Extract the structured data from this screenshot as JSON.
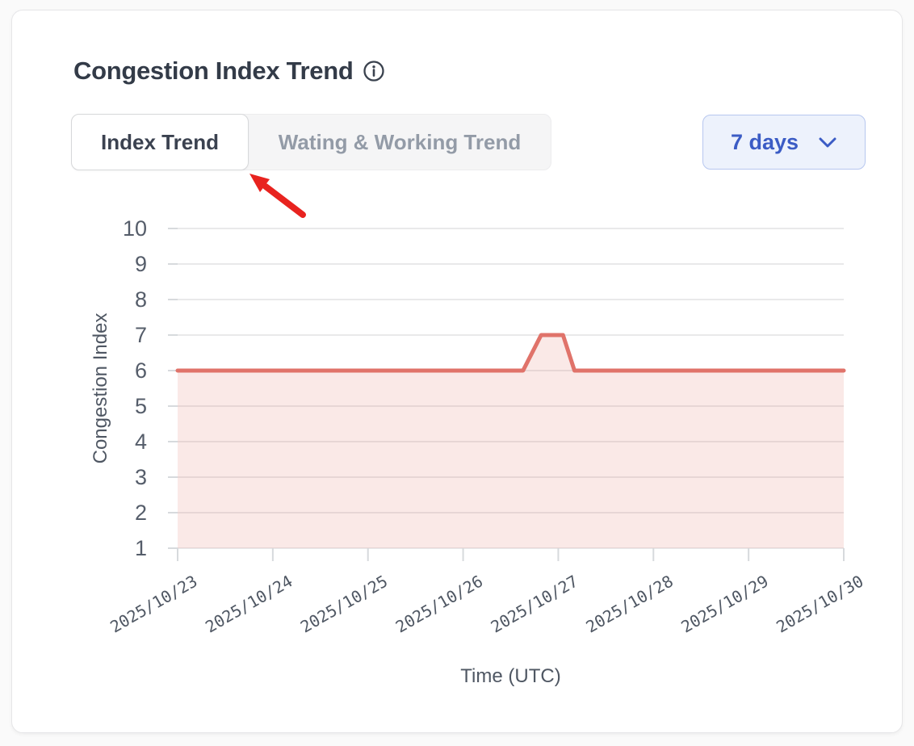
{
  "header": {
    "title": "Congestion Index Trend",
    "info_icon": "info-icon"
  },
  "tabs": [
    {
      "label": "Index Trend",
      "active": true
    },
    {
      "label": "Wating & Working Trend",
      "active": false
    }
  ],
  "range_selector": {
    "value": "7 days",
    "icon": "chevron-down-icon",
    "accent_color": "#3b5cc5",
    "background_color": "#edf2fc",
    "border_color": "#b7c7ef"
  },
  "annotation": {
    "type": "red-arrow",
    "points_at": "Index Trend tab",
    "color": "#e8231f"
  },
  "chart_data": {
    "type": "area",
    "title": "Congestion Index Trend",
    "xlabel": "Time (UTC)",
    "ylabel": "Congestion Index",
    "ylim": [
      1,
      10
    ],
    "y_ticks": [
      1,
      2,
      3,
      4,
      5,
      6,
      7,
      8,
      9,
      10
    ],
    "x_tick_labels": [
      "2025/10/23",
      "2025/10/24",
      "2025/10/25",
      "2025/10/26",
      "2025/10/27",
      "2025/10/28",
      "2025/10/29",
      "2025/10/30"
    ],
    "x_range_days": [
      0,
      7
    ],
    "grid": "horizontal",
    "legend": "none",
    "series": [
      {
        "name": "Congestion Index",
        "points": [
          {
            "x_days": 0.0,
            "time": "2025/10/23 00:00",
            "y": 6
          },
          {
            "x_days": 3.63,
            "time": "2025/10/26 15:00",
            "y": 6
          },
          {
            "x_days": 3.82,
            "time": "2025/10/26 20:00",
            "y": 7
          },
          {
            "x_days": 4.05,
            "time": "2025/10/27 01:00",
            "y": 7
          },
          {
            "x_days": 4.17,
            "time": "2025/10/27 04:00",
            "y": 6
          },
          {
            "x_days": 7.0,
            "time": "2025/10/30 00:00",
            "y": 6
          }
        ],
        "line_color": "#e0736a",
        "fill_color": "rgba(226,116,107,0.16)"
      }
    ],
    "colors": {
      "grid": "#e9e9ea",
      "tick": "#d7dadd",
      "axis_text": "#4f5763"
    }
  }
}
